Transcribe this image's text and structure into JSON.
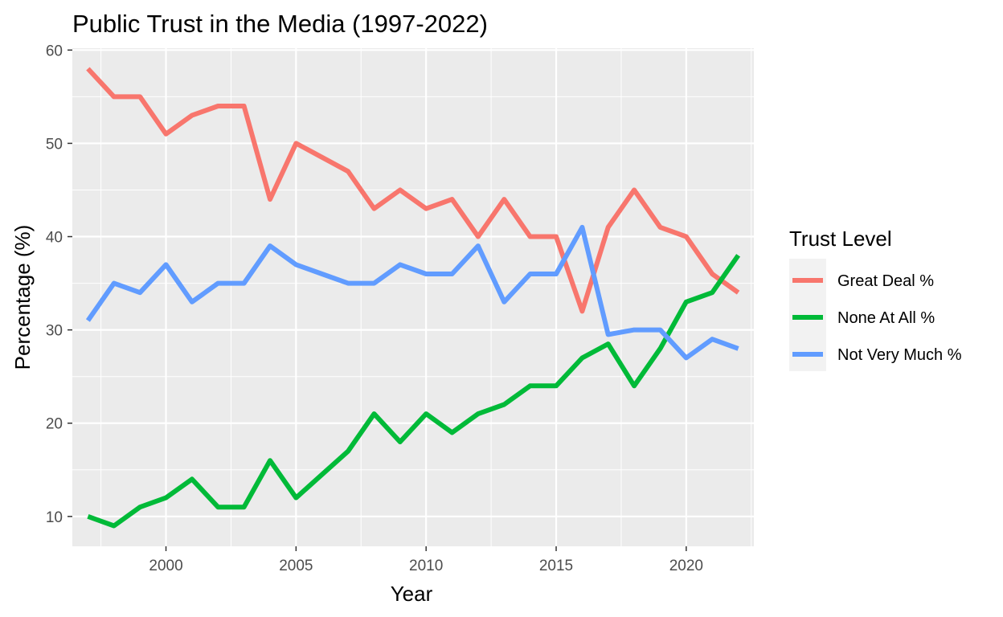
{
  "chart_data": {
    "type": "line",
    "title": "Public Trust in the Media (1997-2022)",
    "xlabel": "Year",
    "ylabel": "Percentage (%)",
    "xlim": [
      1996.4,
      2022.6
    ],
    "ylim": [
      6.8,
      60.2
    ],
    "x_ticks": [
      2000,
      2005,
      2010,
      2015,
      2020
    ],
    "y_ticks": [
      10,
      20,
      30,
      40,
      50,
      60
    ],
    "grid": true,
    "legend_title": "Trust Level",
    "legend_position": "right",
    "x": [
      1997,
      1998,
      1999,
      2000,
      2001,
      2002,
      2003,
      2004,
      2005,
      2006,
      2007,
      2008,
      2009,
      2010,
      2011,
      2012,
      2013,
      2014,
      2015,
      2016,
      2017,
      2018,
      2019,
      2020,
      2021,
      2022
    ],
    "series": [
      {
        "name": "Great Deal %",
        "color": "#F8766D",
        "values": [
          58,
          55,
          55,
          51,
          53,
          54,
          54,
          44,
          50,
          48.5,
          47,
          43,
          45,
          43,
          44,
          40,
          44,
          40,
          40,
          32,
          41,
          45,
          41,
          40,
          36,
          34
        ]
      },
      {
        "name": "None At All %",
        "color": "#00BA38",
        "values": [
          10,
          9,
          11,
          12,
          14,
          11,
          11,
          16,
          12,
          14.5,
          17,
          21,
          18,
          21,
          19,
          21,
          22,
          24,
          24,
          27,
          28.5,
          24,
          28,
          33,
          34,
          38
        ]
      },
      {
        "name": "Not Very Much %",
        "color": "#619CFF",
        "values": [
          31,
          35,
          34,
          37,
          33,
          35,
          35,
          39,
          37,
          36,
          35,
          35,
          37,
          36,
          36,
          39,
          33,
          36,
          36,
          41,
          29.5,
          30,
          30,
          27,
          29,
          28
        ]
      }
    ]
  }
}
